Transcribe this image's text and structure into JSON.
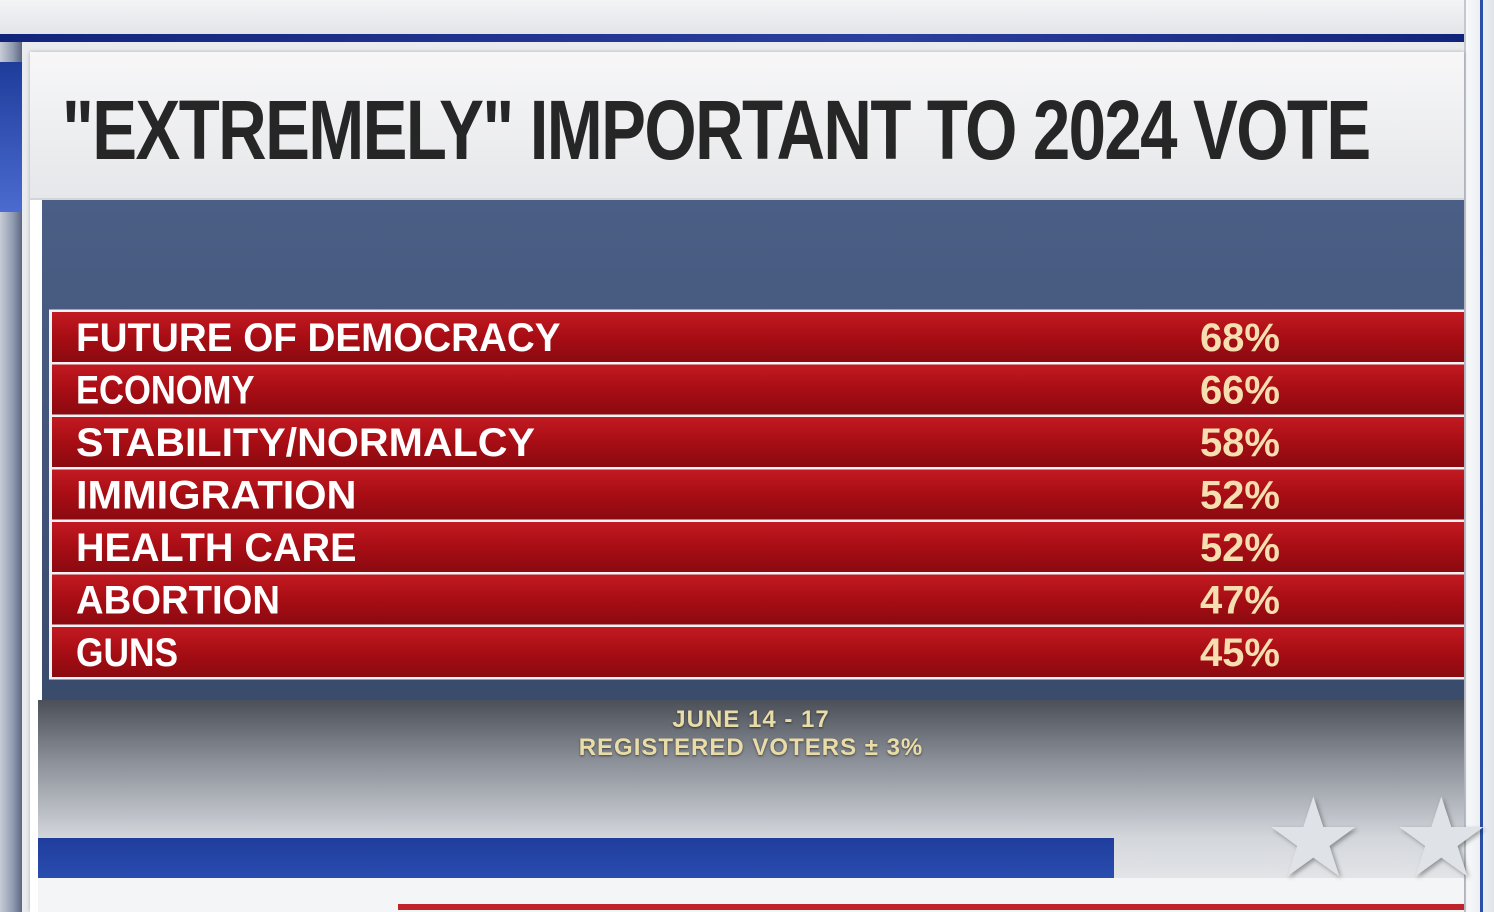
{
  "chart_data": {
    "type": "table",
    "title": "\"EXTREMELY\" IMPORTANT TO 2024 VOTE",
    "categories": [
      "FUTURE OF DEMOCRACY",
      "ECONOMY",
      "STABILITY/NORMALCY",
      "IMMIGRATION",
      "HEALTH CARE",
      "ABORTION",
      "GUNS"
    ],
    "values": [
      68,
      66,
      58,
      52,
      52,
      47,
      45
    ],
    "value_labels": [
      "68%",
      "66%",
      "58%",
      "52%",
      "52%",
      "47%",
      "45%"
    ],
    "unit": "%",
    "row_color": "#a80d14",
    "label_color": "#ffffff",
    "value_color": "#f5deb0"
  },
  "footer": {
    "date": "JUNE 14 - 17",
    "sample": "REGISTERED VOTERS ± 3%"
  },
  "decorations": {
    "stars": [
      "star-icon",
      "star-icon"
    ]
  }
}
